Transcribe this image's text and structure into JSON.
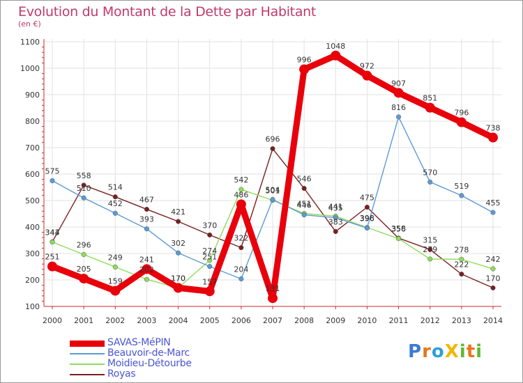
{
  "title": "Evolution du Montant de la Dette par Habitant",
  "unit_label": "(en €)",
  "brand": {
    "name": "ProXiti",
    "letters": [
      "P",
      "r",
      "o",
      "X",
      "i",
      "t",
      "i"
    ],
    "colors": [
      "#3a7bd5",
      "#e8761c",
      "#2e9fd8",
      "#f2b705",
      "#5fb832",
      "#e8761c",
      "#5fb832"
    ]
  },
  "chart_data": {
    "type": "line",
    "title": "Evolution du Montant de la Dette par Habitant",
    "ylabel": "(en €)",
    "xlabel": "",
    "x": [
      "2000",
      "2001",
      "2002",
      "2003",
      "2004",
      "2005",
      "2006",
      "2007",
      "2008",
      "2009",
      "2010",
      "2011",
      "2012",
      "2013",
      "2014"
    ],
    "ylim": [
      100,
      1100
    ],
    "yticks": [
      "100",
      "200",
      "300",
      "400",
      "500",
      "600",
      "700",
      "800",
      "900",
      "1000",
      "1100"
    ],
    "grid": true,
    "legend": "bottom-left",
    "series": [
      {
        "name": "SAVAS-MéPIN",
        "color": "#e8000b",
        "values": [
          251,
          205,
          159,
          241,
          170,
          157,
          486,
          131,
          996,
          1048,
          972,
          907,
          851,
          796,
          738
        ]
      },
      {
        "name": "Beauvoir-de-Marc",
        "color": "#5b9bd5",
        "values": [
          575,
          510,
          452,
          393,
          302,
          251,
          204,
          504,
          446,
          435,
          396,
          816,
          570,
          519,
          455
        ]
      },
      {
        "name": "Moidieu-Détourbe",
        "color": "#8fdc5a",
        "values": [
          343,
          296,
          249,
          202,
          170,
          274,
          542,
          501,
          451,
          441,
          398,
          356,
          279,
          278,
          242
        ]
      },
      {
        "name": "Royas",
        "color": "#7a2020",
        "values": [
          344,
          558,
          514,
          467,
          421,
          370,
          322,
          696,
          546,
          383,
          475,
          358,
          315,
          222,
          170
        ]
      }
    ]
  }
}
